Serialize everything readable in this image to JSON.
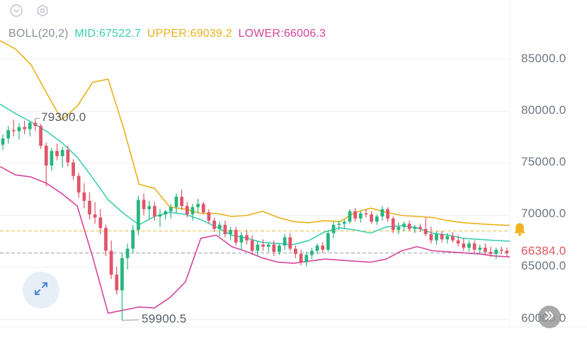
{
  "toolbar": {
    "icons": [
      "chevron-down-circle-icon",
      "gear-icon"
    ]
  },
  "legend": {
    "name": "BOLL(20,2)",
    "mid": "MID:67522.7",
    "upper": "UPPER:69039.2",
    "lower": "LOWER:66006.3"
  },
  "colors": {
    "mid": "#3ccfb0",
    "upper": "#e8b21a",
    "lower": "#d6449c",
    "up_candle": "#27b57f",
    "down_candle": "#e0556a",
    "axis_text": "#6e7580",
    "grid": "#eef0f3",
    "current_price_line": "#9aa0a8",
    "alert_line": "#e6c24a",
    "alert_bell": "#f0b21c"
  },
  "chart_data": {
    "type": "candlestick",
    "indicator": "BOLL(20,2)",
    "yticks": [
      "85000.0",
      "80000.0",
      "75000.0",
      "70000.0",
      "65000.0",
      "60000.0"
    ],
    "ylim": [
      59500,
      88500
    ],
    "current_price": 66384.0,
    "current_price_label": "66384.0",
    "alert_price": 68500,
    "high_marker": {
      "price": 79300.0,
      "label": "79300.0"
    },
    "low_marker": {
      "price": 59900.5,
      "label": "59900.5"
    },
    "candles": [
      [
        76800,
        77800,
        76300,
        77400
      ],
      [
        77400,
        78600,
        76900,
        78200
      ],
      [
        78200,
        79200,
        77600,
        78100
      ],
      [
        78100,
        78900,
        77300,
        78500
      ],
      [
        78500,
        79100,
        77800,
        78300
      ],
      [
        78300,
        79000,
        77600,
        78900
      ],
      [
        78900,
        79300,
        78100,
        78600
      ],
      [
        78600,
        78800,
        76400,
        76700
      ],
      [
        76700,
        77000,
        72800,
        74800
      ],
      [
        74800,
        76500,
        74300,
        76200
      ],
      [
        76200,
        76900,
        75300,
        75700
      ],
      [
        75700,
        76600,
        74600,
        76300
      ],
      [
        76300,
        76700,
        74700,
        75100
      ],
      [
        75100,
        75400,
        73400,
        73800
      ],
      [
        73800,
        74100,
        71700,
        72200
      ],
      [
        72200,
        73100,
        70700,
        71400
      ],
      [
        71400,
        72200,
        69600,
        70100
      ],
      [
        70100,
        71300,
        69200,
        69800
      ],
      [
        69800,
        70600,
        68200,
        68800
      ],
      [
        68800,
        69100,
        66100,
        66600
      ],
      [
        66600,
        67600,
        63900,
        64300
      ],
      [
        64300,
        65100,
        62400,
        62800
      ],
      [
        62800,
        66400,
        59900,
        65900
      ],
      [
        65900,
        67300,
        64800,
        66800
      ],
      [
        66800,
        69100,
        66400,
        68600
      ],
      [
        68600,
        71900,
        68100,
        71500
      ],
      [
        71500,
        72100,
        70000,
        70600
      ],
      [
        70600,
        71400,
        69700,
        70900
      ],
      [
        70900,
        71300,
        69500,
        69900
      ],
      [
        69900,
        70600,
        68900,
        70100
      ],
      [
        70100,
        70500,
        69600,
        70400
      ],
      [
        70400,
        71100,
        69700,
        70800
      ],
      [
        70800,
        72100,
        70200,
        71800
      ],
      [
        71800,
        72500,
        70500,
        70900
      ],
      [
        70900,
        71300,
        69800,
        70100
      ],
      [
        70100,
        71100,
        69500,
        70800
      ],
      [
        70800,
        71600,
        70200,
        71100
      ],
      [
        71100,
        71300,
        70100,
        70300
      ],
      [
        70300,
        70600,
        69200,
        69500
      ],
      [
        69500,
        69800,
        68400,
        68700
      ],
      [
        68700,
        69400,
        68000,
        69100
      ],
      [
        69100,
        69500,
        67900,
        68200
      ],
      [
        68200,
        68900,
        67600,
        68600
      ],
      [
        68600,
        68900,
        67100,
        67400
      ],
      [
        67400,
        68400,
        66700,
        68100
      ],
      [
        68100,
        68600,
        67200,
        67600
      ],
      [
        67600,
        68100,
        66200,
        66600
      ],
      [
        66600,
        67500,
        66000,
        67200
      ],
      [
        67200,
        67700,
        66600,
        67000
      ],
      [
        67000,
        67400,
        66500,
        67200
      ],
      [
        67200,
        67600,
        66100,
        66500
      ],
      [
        66500,
        67300,
        66200,
        67100
      ],
      [
        67100,
        68200,
        66700,
        67900
      ],
      [
        67900,
        68300,
        66600,
        66800
      ],
      [
        66800,
        67100,
        65900,
        66300
      ],
      [
        66300,
        66700,
        65200,
        65500
      ],
      [
        65500,
        66500,
        65100,
        66200
      ],
      [
        66200,
        66900,
        65800,
        66600
      ],
      [
        66600,
        67300,
        66300,
        67100
      ],
      [
        67100,
        67400,
        66400,
        66700
      ],
      [
        66700,
        68600,
        66500,
        68300
      ],
      [
        68300,
        69400,
        67800,
        69100
      ],
      [
        69100,
        69500,
        68600,
        69200
      ],
      [
        69200,
        69600,
        68700,
        69400
      ],
      [
        69400,
        70600,
        69200,
        70400
      ],
      [
        70400,
        70700,
        69400,
        69700
      ],
      [
        69700,
        70400,
        69300,
        70200
      ],
      [
        70200,
        70600,
        69800,
        70100
      ],
      [
        70100,
        70400,
        69200,
        69400
      ],
      [
        69400,
        70100,
        69100,
        69900
      ],
      [
        69900,
        70900,
        69500,
        70600
      ],
      [
        70600,
        70800,
        69400,
        69700
      ],
      [
        69700,
        69900,
        68300,
        68600
      ],
      [
        68600,
        69300,
        68200,
        68900
      ],
      [
        68900,
        69400,
        68500,
        69200
      ],
      [
        69200,
        69500,
        68500,
        68700
      ],
      [
        68700,
        69100,
        68300,
        68900
      ],
      [
        68900,
        69200,
        68400,
        68700
      ],
      [
        68700,
        69800,
        68000,
        68200
      ],
      [
        68200,
        68900,
        67300,
        67600
      ],
      [
        67600,
        68500,
        67200,
        68200
      ],
      [
        68200,
        68500,
        67400,
        67700
      ],
      [
        67700,
        68300,
        67300,
        68000
      ],
      [
        68000,
        68400,
        67400,
        67600
      ],
      [
        67600,
        68100,
        67000,
        67300
      ],
      [
        67300,
        67800,
        66600,
        66900
      ],
      [
        66900,
        67600,
        66500,
        67300
      ],
      [
        67300,
        67600,
        66400,
        66700
      ],
      [
        66700,
        67200,
        66300,
        66900
      ],
      [
        66900,
        67300,
        66200,
        66500
      ],
      [
        66500,
        67000,
        66000,
        66300
      ],
      [
        66300,
        66900,
        65800,
        66700
      ],
      [
        66700,
        67000,
        66300,
        66600
      ],
      [
        66600,
        66900,
        66100,
        66384
      ]
    ],
    "upper": [
      86800,
      86000,
      84500,
      81800,
      79200,
      80500,
      82800,
      83100,
      78400,
      73000,
      72600,
      70800,
      70600,
      70200,
      70200,
      69900,
      70000,
      70400,
      69800,
      69400,
      69300,
      69500,
      69400,
      70300,
      70700,
      70300,
      70000,
      69900,
      69800,
      69500,
      69300,
      69200,
      69100,
      69039
    ],
    "mid": [
      80700,
      79800,
      79000,
      78100,
      77000,
      75600,
      73600,
      71500,
      70200,
      69100,
      69900,
      70300,
      70100,
      69600,
      68900,
      68100,
      67800,
      67400,
      67300,
      67200,
      67600,
      68400,
      68800,
      68600,
      68300,
      68900,
      69000,
      68800,
      68300,
      68100,
      67800,
      67700,
      67600,
      67523
    ],
    "lower": [
      74700,
      73900,
      73700,
      73100,
      72100,
      70900,
      66000,
      60600,
      60900,
      61200,
      61100,
      62100,
      63600,
      67800,
      68100,
      67000,
      66500,
      65900,
      65500,
      65400,
      65600,
      65800,
      65700,
      65600,
      65500,
      65800,
      66600,
      67000,
      66600,
      66500,
      66400,
      66300,
      66100,
      66006
    ]
  }
}
